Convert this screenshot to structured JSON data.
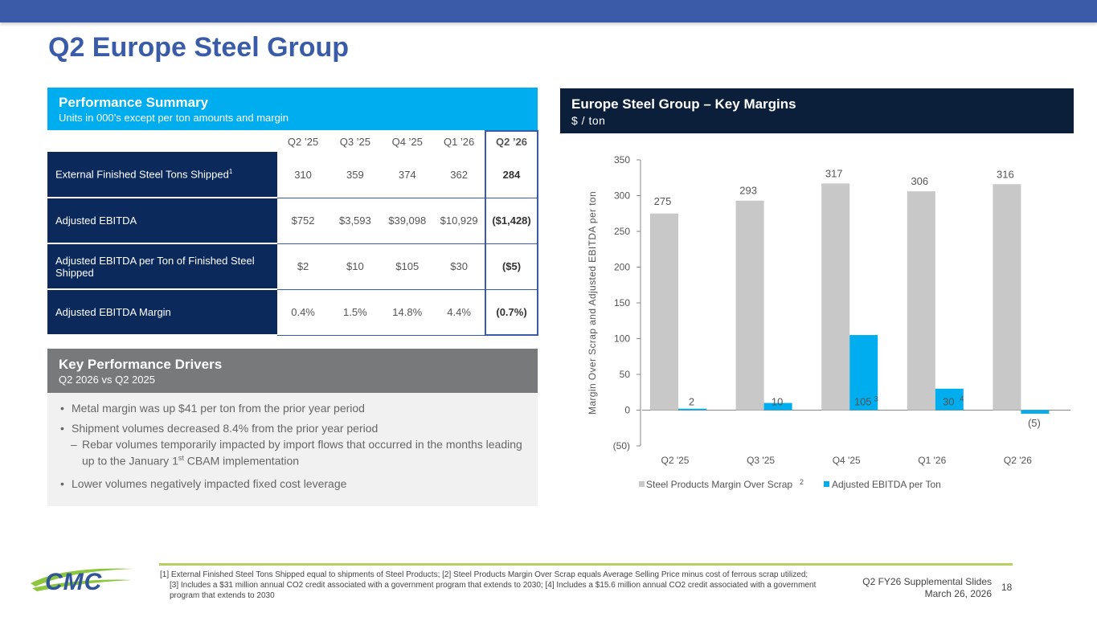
{
  "page": {
    "title": "Q2 Europe Steel Group"
  },
  "performance": {
    "title": "Performance Summary",
    "subtitle": "Units in 000’s except per ton amounts and margin",
    "columns": [
      "Q2 ’25",
      "Q3 ’25",
      "Q4 ’25",
      "Q1 ’26",
      "Q2 ’26"
    ],
    "rows": [
      {
        "label": "External Finished Steel Tons Shipped",
        "footnote": "1",
        "values": [
          "310",
          "359",
          "374",
          "362",
          "284"
        ]
      },
      {
        "label": "Adjusted EBITDA",
        "footnote": "",
        "values": [
          "$752",
          "$3,593",
          "$39,098",
          "$10,929",
          "($1,428)"
        ]
      },
      {
        "label": "Adjusted EBITDA per Ton of Finished Steel Shipped",
        "footnote": "",
        "values": [
          "$2",
          "$10",
          "$105",
          "$30",
          "($5)"
        ]
      },
      {
        "label": "Adjusted EBITDA Margin",
        "footnote": "",
        "values": [
          "0.4%",
          "1.5%",
          "14.8%",
          "4.4%",
          "(0.7%)"
        ]
      }
    ]
  },
  "drivers": {
    "title": "Key Performance Drivers",
    "subtitle": "Q2 2026 vs Q2 2025",
    "bullets": [
      "Metal margin was up $41 per ton from the prior year period",
      "Shipment volumes decreased 8.4% from the prior year period",
      "Lower volumes negatively impacted fixed cost leverage"
    ],
    "sub_bullet_pre": "Rebar volumes temporarily impacted by import flows that occurred in the months leading up to the January 1",
    "sub_bullet_sup": "st",
    "sub_bullet_post": " CBAM implementation"
  },
  "chart_header": {
    "title": "Europe Steel Group – Key Margins",
    "subtitle": "$ / ton"
  },
  "chart_data": {
    "type": "bar",
    "categories": [
      "Q2 '25",
      "Q3 '25",
      "Q4 '25",
      "Q1 '26",
      "Q2 '26"
    ],
    "series": [
      {
        "name": "Steel Products Margin Over Scrap",
        "name_sup": "2",
        "color": "#c8c8c8",
        "values": [
          275,
          293,
          317,
          306,
          316
        ],
        "labels": [
          "275",
          "293",
          "317",
          "306",
          "316"
        ],
        "label_sups": [
          "",
          "",
          "",
          "",
          ""
        ]
      },
      {
        "name": "Adjusted EBITDA per Ton",
        "name_sup": "",
        "color": "#00aeef",
        "values": [
          2,
          10,
          105,
          30,
          -5
        ],
        "labels": [
          "2",
          "10",
          "105",
          "30",
          "(5)"
        ],
        "label_sups": [
          "",
          "",
          "3",
          "4",
          ""
        ]
      }
    ],
    "ylabel": "Margin Over Scrap and Adjusted EBITDA per ton",
    "ylim": [
      -50,
      350
    ],
    "yticks": [
      "(50)",
      "0",
      "50",
      "100",
      "150",
      "200",
      "250",
      "300",
      "350"
    ],
    "ytick_values": [
      -50,
      0,
      50,
      100,
      150,
      200,
      250,
      300,
      350
    ],
    "legend": "bottom"
  },
  "footer": {
    "logo_text": "CMC",
    "footnote": "[1] External Finished Steel Tons Shipped equal to shipments of Steel Products; [2] Steel Products Margin Over Scrap equals Average Selling Price minus cost of ferrous scrap utilized; [3] Includes a $31 million annual CO2 credit associated with a government program that extends to 2030; [4] Includes a $15.6 million annual CO2 credit associated with a government program that extends to 2030",
    "deck": "Q2 FY26 Supplemental Slides",
    "date": "March 26, 2026",
    "page_number": "18"
  }
}
